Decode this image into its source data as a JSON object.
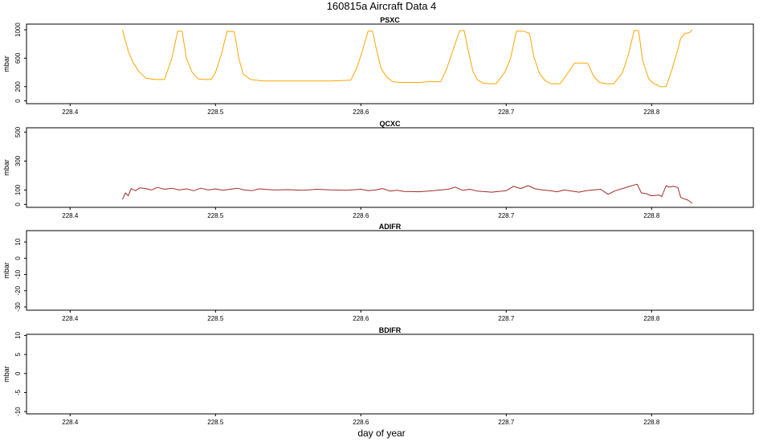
{
  "title": "160815a   Aircraft Data 4",
  "xlabel": "day of year",
  "chart_data": [
    {
      "type": "line",
      "title": "PSXC",
      "ylabel": "mbar",
      "xlim": [
        228.37,
        228.87
      ],
      "ylim": [
        -40,
        1080
      ],
      "xticks": [
        228.4,
        228.5,
        228.6,
        228.7,
        228.8
      ],
      "xtick_labels": [
        "228.4",
        "228.5",
        "228.6",
        "228.7",
        "228.8"
      ],
      "yticks": [
        0,
        200,
        600,
        1000
      ],
      "ytick_labels": [
        "0",
        "200",
        "600",
        "1000"
      ],
      "series": [
        {
          "color": "#ffa500",
          "x": [
            228.436,
            228.44,
            228.443,
            228.447,
            228.452,
            228.458,
            228.465,
            228.47,
            228.474,
            228.477,
            228.48,
            228.484,
            228.488,
            228.492,
            228.497,
            228.5,
            228.504,
            228.508,
            228.513,
            228.516,
            228.519,
            228.524,
            228.528,
            228.533,
            228.54,
            228.55,
            228.56,
            228.57,
            228.58,
            228.593,
            228.597,
            228.601,
            228.605,
            228.608,
            228.611,
            228.614,
            228.618,
            228.622,
            228.627,
            228.633,
            228.64,
            228.647,
            228.655,
            228.659,
            228.664,
            228.668,
            228.671,
            228.674,
            228.677,
            228.68,
            228.684,
            228.688,
            228.693,
            228.699,
            228.703,
            228.707,
            228.712,
            228.716,
            228.719,
            228.723,
            228.727,
            228.731,
            228.737,
            228.742,
            228.747,
            228.752,
            228.756,
            228.76,
            228.764,
            228.769,
            228.774,
            228.78,
            228.784,
            228.788,
            228.791,
            228.794,
            228.798,
            228.801,
            228.806,
            228.81,
            228.814,
            228.818,
            228.82,
            228.823,
            228.826,
            228.828
          ],
          "y": [
            1000,
            700,
            550,
            420,
            320,
            300,
            300,
            600,
            980,
            980,
            600,
            400,
            310,
            300,
            300,
            400,
            650,
            980,
            970,
            600,
            380,
            300,
            290,
            280,
            280,
            280,
            280,
            280,
            280,
            290,
            450,
            700,
            980,
            980,
            700,
            450,
            330,
            270,
            260,
            260,
            260,
            270,
            270,
            450,
            750,
            990,
            990,
            700,
            420,
            300,
            250,
            240,
            240,
            400,
            600,
            980,
            980,
            950,
            620,
            380,
            280,
            240,
            240,
            380,
            530,
            530,
            530,
            350,
            260,
            240,
            240,
            400,
            650,
            990,
            990,
            560,
            310,
            250,
            200,
            200,
            440,
            720,
            880,
            950,
            960,
            1000
          ]
        }
      ]
    },
    {
      "type": "line",
      "title": "QCXC",
      "ylabel": "mbar",
      "xlim": [
        228.37,
        228.87
      ],
      "ylim": [
        -20,
        530
      ],
      "xticks": [
        228.4,
        228.5,
        228.6,
        228.7,
        228.8
      ],
      "xtick_labels": [
        "228.4",
        "228.5",
        "228.6",
        "228.7",
        "228.8"
      ],
      "yticks": [
        0,
        100,
        300,
        500
      ],
      "ytick_labels": [
        "0",
        "100",
        "300",
        "500"
      ],
      "series": [
        {
          "color": "#a52a2a",
          "x": [
            228.436,
            228.438,
            228.44,
            228.442,
            228.445,
            228.448,
            228.452,
            228.456,
            228.46,
            228.465,
            228.47,
            228.475,
            228.48,
            228.485,
            228.49,
            228.495,
            228.5,
            228.505,
            228.51,
            228.515,
            228.52,
            228.525,
            228.53,
            228.54,
            228.55,
            228.56,
            228.57,
            228.58,
            228.59,
            228.6,
            228.605,
            228.61,
            228.615,
            228.62,
            228.625,
            228.63,
            228.64,
            228.65,
            228.655,
            228.66,
            228.665,
            228.67,
            228.675,
            228.68,
            228.69,
            228.7,
            228.705,
            228.71,
            228.715,
            228.72,
            228.725,
            228.73,
            228.735,
            228.74,
            228.745,
            228.75,
            228.755,
            228.76,
            228.765,
            228.77,
            228.775,
            228.78,
            228.785,
            228.79,
            228.793,
            228.796,
            228.8,
            228.805,
            228.807,
            228.81,
            228.812,
            228.815,
            228.818,
            228.82,
            228.822,
            228.825,
            228.828
          ],
          "y": [
            35,
            80,
            60,
            110,
            95,
            115,
            110,
            100,
            118,
            105,
            112,
            100,
            108,
            95,
            112,
            100,
            108,
            98,
            105,
            112,
            100,
            95,
            108,
            100,
            102,
            98,
            105,
            100,
            98,
            105,
            95,
            100,
            110,
            92,
            98,
            90,
            88,
            95,
            100,
            105,
            120,
            98,
            105,
            92,
            85,
            95,
            125,
            110,
            130,
            108,
            100,
            95,
            88,
            100,
            92,
            85,
            95,
            100,
            105,
            70,
            95,
            110,
            125,
            140,
            80,
            75,
            60,
            65,
            55,
            130,
            120,
            125,
            118,
            50,
            40,
            30,
            8
          ]
        }
      ]
    },
    {
      "type": "line",
      "title": "ADIFR",
      "ylabel": "mbar",
      "xlim": [
        228.37,
        228.87
      ],
      "ylim": [
        -32,
        17
      ],
      "xticks": [
        228.4,
        228.5,
        228.6,
        228.7,
        228.8
      ],
      "xtick_labels": [
        "228.4",
        "228.5",
        "228.6",
        "228.7",
        "228.8"
      ],
      "yticks": [
        -30,
        -20,
        -10,
        0,
        10
      ],
      "ytick_labels": [
        "-30",
        "-20",
        "-10",
        "0",
        "10"
      ],
      "series": []
    },
    {
      "type": "line",
      "title": "BDIFR",
      "ylabel": "mbar",
      "xlim": [
        228.37,
        228.87
      ],
      "ylim": [
        -10.6,
        10.3
      ],
      "xticks": [
        228.4,
        228.5,
        228.6,
        228.7,
        228.8
      ],
      "xtick_labels": [
        "228.4",
        "228.5",
        "228.6",
        "228.7",
        "228.8"
      ],
      "yticks": [
        -10,
        -5,
        0,
        5,
        10
      ],
      "ytick_labels": [
        "-10",
        "-5",
        "0",
        "5",
        "10"
      ],
      "series": []
    }
  ]
}
